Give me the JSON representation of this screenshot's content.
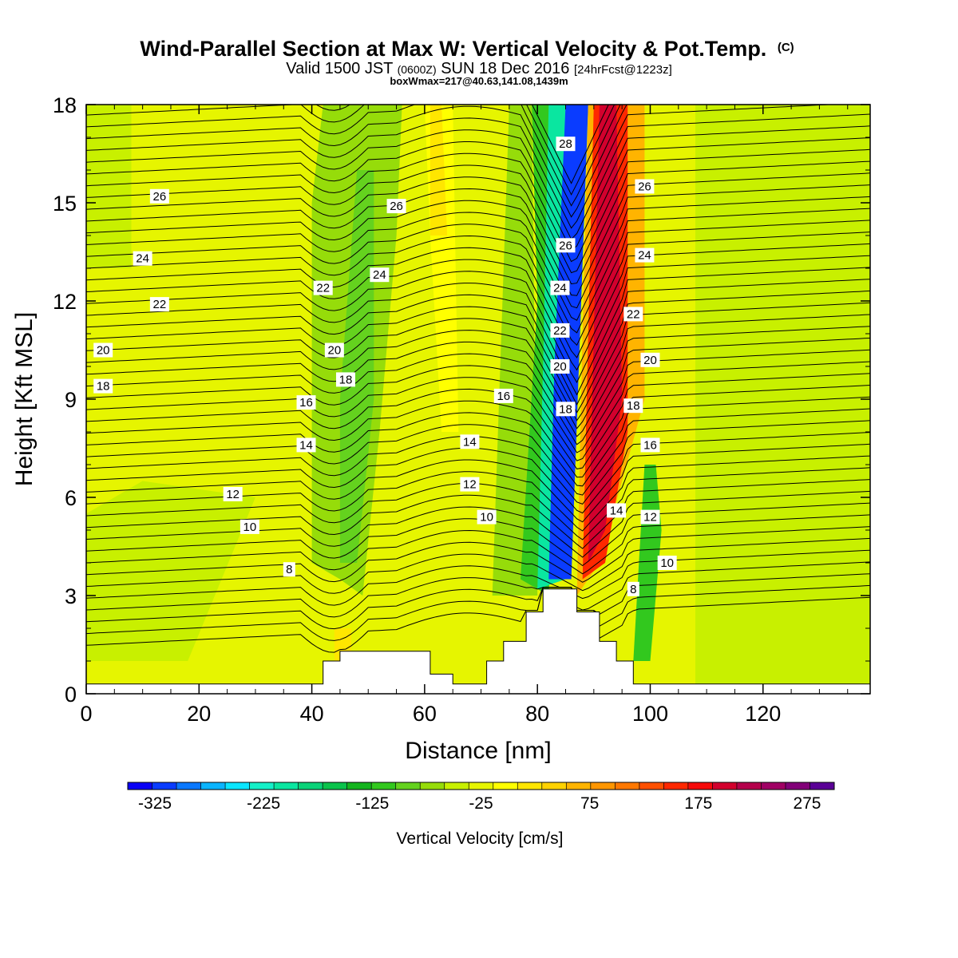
{
  "chart_data": {
    "type": "heatmap",
    "title": "Wind-Parallel Section at Max W: Vertical Velocity & Pot.Temp.",
    "title_mark": "(C)",
    "subtitle": {
      "valid": "Valid 1500 JST",
      "z_time": "(0600Z)",
      "date": "SUN 18 Dec 2016",
      "forecast": "[24hrFcst@1223z]"
    },
    "box_note": "boxWmax=217@40.63,141.08,1439m",
    "xlabel": "Distance [nm]",
    "ylabel": "Height [Kft MSL]",
    "xlim": [
      0,
      139
    ],
    "ylim": [
      0,
      18
    ],
    "x_ticks": [
      "0",
      "20",
      "40",
      "60",
      "80",
      "100",
      "120"
    ],
    "y_ticks": [
      "0",
      "3",
      "6",
      "9",
      "12",
      "15",
      "18"
    ],
    "grid": false,
    "colorbar": {
      "label": "Vertical Velocity [cm/s]",
      "min": -350,
      "max": 300,
      "step": 25,
      "tick_labels": [
        "-325",
        "-225",
        "-125",
        "-25",
        "75",
        "175",
        "275"
      ],
      "colors": [
        "#0a00f5",
        "#0a3cff",
        "#0a78ff",
        "#0ab4ff",
        "#0ae6ff",
        "#14f0c8",
        "#0ae6a0",
        "#0ad278",
        "#0ac34b",
        "#14b41e",
        "#32c81e",
        "#64d21e",
        "#96dc0a",
        "#c8f000",
        "#e6f500",
        "#ffff00",
        "#ffe600",
        "#ffd200",
        "#ffb400",
        "#ff9600",
        "#ff7800",
        "#ff5000",
        "#ff2800",
        "#f50a0a",
        "#d2002d",
        "#b4004b",
        "#a00064",
        "#820078",
        "#5a0096"
      ]
    },
    "terrain_profile": [
      {
        "x": 0,
        "h": 0.3
      },
      {
        "x": 42,
        "h": 0.3
      },
      {
        "x": 42,
        "h": 1.0
      },
      {
        "x": 45,
        "h": 1.0
      },
      {
        "x": 45,
        "h": 1.3
      },
      {
        "x": 61,
        "h": 1.3
      },
      {
        "x": 61,
        "h": 0.6
      },
      {
        "x": 65,
        "h": 0.6
      },
      {
        "x": 65,
        "h": 0.3
      },
      {
        "x": 71,
        "h": 0.3
      },
      {
        "x": 71,
        "h": 1.0
      },
      {
        "x": 74,
        "h": 1.0
      },
      {
        "x": 74,
        "h": 1.6
      },
      {
        "x": 78,
        "h": 1.6
      },
      {
        "x": 78,
        "h": 2.5
      },
      {
        "x": 81,
        "h": 2.5
      },
      {
        "x": 81,
        "h": 3.2
      },
      {
        "x": 87,
        "h": 3.2
      },
      {
        "x": 87,
        "h": 2.5
      },
      {
        "x": 91,
        "h": 2.5
      },
      {
        "x": 91,
        "h": 1.6
      },
      {
        "x": 94,
        "h": 1.6
      },
      {
        "x": 94,
        "h": 1.0
      },
      {
        "x": 97,
        "h": 1.0
      },
      {
        "x": 97,
        "h": 0.3
      },
      {
        "x": 139,
        "h": 0.3
      }
    ],
    "vertical_velocity_regions": [
      {
        "poly": [
          [
            0,
            0
          ],
          [
            139,
            0
          ],
          [
            139,
            18
          ],
          [
            0,
            18
          ]
        ],
        "w": 0
      },
      {
        "poly": [
          [
            0,
            1
          ],
          [
            18,
            1
          ],
          [
            30,
            6
          ],
          [
            10,
            6.5
          ],
          [
            0,
            5.5
          ]
        ],
        "w": -15
      },
      {
        "poly": [
          [
            0,
            13
          ],
          [
            8,
            13
          ],
          [
            8,
            18
          ],
          [
            0,
            18
          ]
        ],
        "w": -15
      },
      {
        "poly": [
          [
            108,
            0.3
          ],
          [
            139,
            0.3
          ],
          [
            139,
            18
          ],
          [
            108,
            18
          ]
        ],
        "w": -12
      },
      {
        "poly": [
          [
            40,
            4
          ],
          [
            45,
            3.5
          ],
          [
            49,
            3
          ],
          [
            52,
            8
          ],
          [
            55,
            14
          ],
          [
            56,
            18
          ],
          [
            42,
            18
          ],
          [
            40,
            15
          ]
        ],
        "w": -30
      },
      {
        "poly": [
          [
            45,
            4
          ],
          [
            48,
            4
          ],
          [
            51,
            9
          ],
          [
            51,
            16
          ],
          [
            48,
            16
          ],
          [
            45,
            9
          ]
        ],
        "w": -60
      },
      {
        "poly": [
          [
            63,
            8
          ],
          [
            66,
            8
          ],
          [
            65,
            18
          ],
          [
            60,
            18
          ],
          [
            61,
            14
          ]
        ],
        "w": 40
      },
      {
        "poly": [
          [
            61,
            14
          ],
          [
            64,
            14
          ],
          [
            63,
            18
          ],
          [
            61,
            18
          ]
        ],
        "w": 70
      },
      {
        "poly": [
          [
            72,
            3
          ],
          [
            80,
            3
          ],
          [
            79,
            18
          ],
          [
            75,
            18
          ]
        ],
        "w": -40
      },
      {
        "poly": [
          [
            77,
            3.5
          ],
          [
            82,
            3
          ],
          [
            86,
            18
          ],
          [
            79,
            18
          ],
          [
            80,
            12
          ]
        ],
        "w": -100
      },
      {
        "poly": [
          [
            80,
            3.2
          ],
          [
            85,
            3.5
          ],
          [
            89,
            18
          ],
          [
            82,
            18
          ],
          [
            81,
            10
          ]
        ],
        "w": -200
      },
      {
        "poly": [
          [
            82,
            3.5
          ],
          [
            86,
            3.5
          ],
          [
            89,
            18
          ],
          [
            85,
            18
          ],
          [
            83,
            10
          ]
        ],
        "w": -320
      },
      {
        "poly": [
          [
            87,
            3
          ],
          [
            91,
            4
          ],
          [
            99,
            9
          ],
          [
            99,
            18
          ],
          [
            89,
            18
          ],
          [
            88,
            11
          ]
        ],
        "w": 120
      },
      {
        "poly": [
          [
            88,
            3.5
          ],
          [
            92,
            4
          ],
          [
            96,
            8
          ],
          [
            96,
            18
          ],
          [
            90,
            18
          ],
          [
            89,
            11
          ]
        ],
        "w": 200
      },
      {
        "poly": [
          [
            89,
            4
          ],
          [
            92,
            5
          ],
          [
            95,
            9
          ],
          [
            94,
            18
          ],
          [
            91,
            18
          ],
          [
            90,
            11
          ]
        ],
        "w": 260
      },
      {
        "poly": [
          [
            97,
            1
          ],
          [
            100,
            1
          ],
          [
            102,
            5
          ],
          [
            101,
            7
          ],
          [
            99,
            7
          ],
          [
            98,
            4
          ]
        ],
        "w": -80
      },
      {
        "poly": [
          [
            44,
            0.3
          ],
          [
            47,
            0.3
          ],
          [
            47,
            2
          ],
          [
            44,
            2
          ]
        ],
        "w": 50
      }
    ],
    "theta_contours": [
      {
        "value": 8,
        "label": "8"
      },
      {
        "value": 10,
        "label": "10"
      },
      {
        "value": 12,
        "label": "12"
      },
      {
        "value": 14,
        "label": "14"
      },
      {
        "value": 16,
        "label": "16"
      },
      {
        "value": 18,
        "label": "18"
      },
      {
        "value": 20,
        "label": "20"
      },
      {
        "value": 22,
        "label": "22"
      },
      {
        "value": 24,
        "label": "24"
      },
      {
        "value": 26,
        "label": "26"
      },
      {
        "value": 28,
        "label": "28"
      }
    ],
    "contour_base": {
      "x": [
        0,
        20,
        40,
        45,
        50,
        55,
        65,
        75,
        82,
        86,
        89,
        92,
        95,
        100,
        110,
        139
      ]
    },
    "contour_labels": [
      {
        "text": "26",
        "x": 13,
        "y": 15.2
      },
      {
        "text": "24",
        "x": 10,
        "y": 13.3
      },
      {
        "text": "22",
        "x": 13,
        "y": 11.9
      },
      {
        "text": "20",
        "x": 3,
        "y": 10.5
      },
      {
        "text": "18",
        "x": 3,
        "y": 9.4
      },
      {
        "text": "16",
        "x": 39,
        "y": 8.9
      },
      {
        "text": "14",
        "x": 39,
        "y": 7.6
      },
      {
        "text": "12",
        "x": 26,
        "y": 6.1
      },
      {
        "text": "10",
        "x": 29,
        "y": 5.1
      },
      {
        "text": "8",
        "x": 36,
        "y": 3.8
      },
      {
        "text": "26",
        "x": 55,
        "y": 14.9
      },
      {
        "text": "24",
        "x": 52,
        "y": 12.8
      },
      {
        "text": "22",
        "x": 42,
        "y": 12.4
      },
      {
        "text": "20",
        "x": 44,
        "y": 10.5
      },
      {
        "text": "18",
        "x": 46,
        "y": 9.6
      },
      {
        "text": "16",
        "x": 74,
        "y": 9.1
      },
      {
        "text": "14",
        "x": 68,
        "y": 7.7
      },
      {
        "text": "12",
        "x": 68,
        "y": 6.4
      },
      {
        "text": "10",
        "x": 71,
        "y": 5.4
      },
      {
        "text": "28",
        "x": 85,
        "y": 16.8
      },
      {
        "text": "26",
        "x": 85,
        "y": 13.7
      },
      {
        "text": "24",
        "x": 84,
        "y": 12.4
      },
      {
        "text": "22",
        "x": 84,
        "y": 11.1
      },
      {
        "text": "20",
        "x": 84,
        "y": 10.0
      },
      {
        "text": "18",
        "x": 85,
        "y": 8.7
      },
      {
        "text": "26",
        "x": 99,
        "y": 15.5
      },
      {
        "text": "24",
        "x": 99,
        "y": 13.4
      },
      {
        "text": "22",
        "x": 97,
        "y": 11.6
      },
      {
        "text": "20",
        "x": 100,
        "y": 10.2
      },
      {
        "text": "18",
        "x": 97,
        "y": 8.8
      },
      {
        "text": "16",
        "x": 100,
        "y": 7.6
      },
      {
        "text": "14",
        "x": 94,
        "y": 5.6
      },
      {
        "text": "12",
        "x": 100,
        "y": 5.4
      },
      {
        "text": "10",
        "x": 103,
        "y": 4.0
      },
      {
        "text": "8",
        "x": 97,
        "y": 3.2
      }
    ]
  }
}
